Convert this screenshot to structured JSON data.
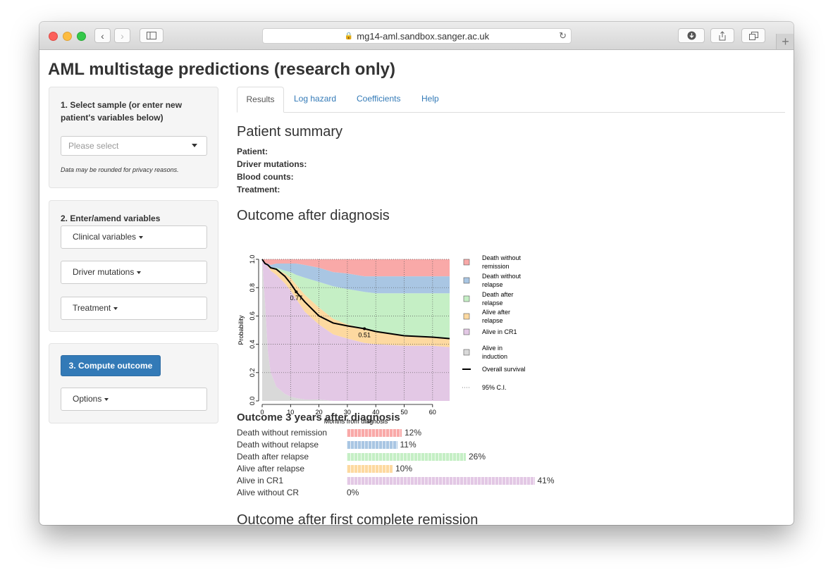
{
  "browser": {
    "url": "mg14-aml.sandbox.sanger.ac.uk"
  },
  "app_title": "AML multistage predictions (research only)",
  "sidebar": {
    "select_section": {
      "title": "1. Select sample (or enter new patient's variables below)",
      "placeholder": "Please select",
      "note": "Data may be rounded for privacy reasons."
    },
    "variables_section": {
      "title": "2. Enter/amend variables",
      "buttons": [
        "Clinical variables",
        "Driver mutations",
        "Treatment"
      ]
    },
    "compute_section": {
      "compute_label": "3. Compute outcome",
      "options_label": "Options"
    }
  },
  "tabs": [
    "Results",
    "Log hazard",
    "Coefficients",
    "Help"
  ],
  "active_tab": "Results",
  "patient_summary": {
    "heading": "Patient summary",
    "fields": [
      "Patient:",
      "Driver mutations:",
      "Blood counts:",
      "Treatment:"
    ]
  },
  "outcome_heading": "Outcome after diagnosis",
  "chart_data": {
    "type": "area",
    "xlabel": "Months from diagnosis",
    "ylabel": "Probability",
    "xlim": [
      0,
      66
    ],
    "ylim": [
      0,
      1
    ],
    "xticks": [
      0,
      10,
      20,
      30,
      40,
      50,
      60
    ],
    "yticks": [
      0.0,
      0.2,
      0.4,
      0.6,
      0.8,
      1.0
    ],
    "grid": true,
    "legend_position": "right",
    "x": [
      0,
      1,
      2,
      3,
      5,
      8,
      10,
      12,
      15,
      20,
      25,
      30,
      36,
      40,
      50,
      60,
      66
    ],
    "series": [
      {
        "name": "Alive in induction",
        "color": "#d9d9d9",
        "values": [
          1.0,
          0.7,
          0.35,
          0.2,
          0.1,
          0.05,
          0.03,
          0.02,
          0.01,
          0.01,
          0.0,
          0.0,
          0.0,
          0.0,
          0.0,
          0.0,
          0.0
        ]
      },
      {
        "name": "Alive in CR1",
        "color": "#e3c8e5",
        "values": [
          0.0,
          0.27,
          0.6,
          0.72,
          0.79,
          0.78,
          0.75,
          0.7,
          0.62,
          0.53,
          0.47,
          0.44,
          0.41,
          0.4,
          0.39,
          0.39,
          0.38
        ]
      },
      {
        "name": "Alive after relapse",
        "color": "#fdd9a0",
        "values": [
          0.0,
          0.0,
          0.01,
          0.02,
          0.04,
          0.07,
          0.09,
          0.1,
          0.12,
          0.12,
          0.11,
          0.1,
          0.1,
          0.09,
          0.07,
          0.06,
          0.06
        ]
      },
      {
        "name": "Death after relapse",
        "color": "#c5efc5",
        "values": [
          0.0,
          0.0,
          0.0,
          0.0,
          0.01,
          0.02,
          0.04,
          0.07,
          0.12,
          0.18,
          0.23,
          0.25,
          0.26,
          0.27,
          0.3,
          0.31,
          0.32
        ]
      },
      {
        "name": "Death without relapse",
        "color": "#a9c6e3",
        "values": [
          0.0,
          0.0,
          0.01,
          0.02,
          0.03,
          0.05,
          0.06,
          0.08,
          0.09,
          0.1,
          0.1,
          0.11,
          0.11,
          0.12,
          0.12,
          0.12,
          0.12
        ]
      },
      {
        "name": "Death without remission",
        "color": "#f9a9a8",
        "values": [
          0.0,
          0.03,
          0.03,
          0.04,
          0.03,
          0.03,
          0.03,
          0.03,
          0.04,
          0.06,
          0.09,
          0.1,
          0.12,
          0.12,
          0.12,
          0.12,
          0.12
        ]
      }
    ],
    "overall_survival": {
      "name": "Overall survival",
      "values": [
        1.0,
        0.97,
        0.96,
        0.94,
        0.93,
        0.88,
        0.83,
        0.77,
        0.7,
        0.6,
        0.55,
        0.53,
        0.51,
        0.49,
        0.46,
        0.45,
        0.44
      ],
      "labels": [
        {
          "x": 12,
          "y": 0.77,
          "text": "0.77"
        },
        {
          "x": 36,
          "y": 0.51,
          "text": "0.51"
        }
      ]
    },
    "legend": [
      {
        "label": "Death without remission",
        "lines": [
          "Death without",
          "remission"
        ],
        "color": "#f9a9a8",
        "kind": "box"
      },
      {
        "label": "Death without relapse",
        "lines": [
          "Death without",
          "relapse"
        ],
        "color": "#a9c6e3",
        "kind": "box"
      },
      {
        "label": "Death after relapse",
        "lines": [
          "Death after",
          "relapse"
        ],
        "color": "#c5efc5",
        "kind": "box"
      },
      {
        "label": "Alive after relapse",
        "lines": [
          "Alive after",
          "relapse"
        ],
        "color": "#fdd9a0",
        "kind": "box"
      },
      {
        "label": "Alive in CR1",
        "lines": [
          "Alive in CR1"
        ],
        "color": "#e3c8e5",
        "kind": "box"
      },
      {
        "label": "Alive in induction",
        "lines": [
          "Alive in",
          "induction"
        ],
        "color": "#d9d9d9",
        "kind": "box"
      },
      {
        "label": "Overall survival",
        "lines": [
          "Overall survival"
        ],
        "color": "#000000",
        "kind": "line"
      },
      {
        "label": "95% C.I.",
        "lines": [
          "95% C.I."
        ],
        "color": "#555555",
        "kind": "dash"
      }
    ]
  },
  "outcome_3yr": {
    "heading": "Outcome 3 years after diagnosis",
    "rows": [
      {
        "label": "Death without remission",
        "pct": "12%",
        "value": 12,
        "color": "#f9a9a8"
      },
      {
        "label": "Death without relapse",
        "pct": "11%",
        "value": 11,
        "color": "#a9c6e3"
      },
      {
        "label": "Death after relapse",
        "pct": "26%",
        "value": 26,
        "color": "#c5efc5"
      },
      {
        "label": "Alive after relapse",
        "pct": "10%",
        "value": 10,
        "color": "#fdd9a0"
      },
      {
        "label": "Alive in CR1",
        "pct": "41%",
        "value": 41,
        "color": "#e3c8e5"
      },
      {
        "label": "Alive without CR",
        "pct": "0%",
        "value": 0,
        "color": "#d9d9d9"
      }
    ]
  },
  "outcome_cr_heading": "Outcome after first complete remission"
}
